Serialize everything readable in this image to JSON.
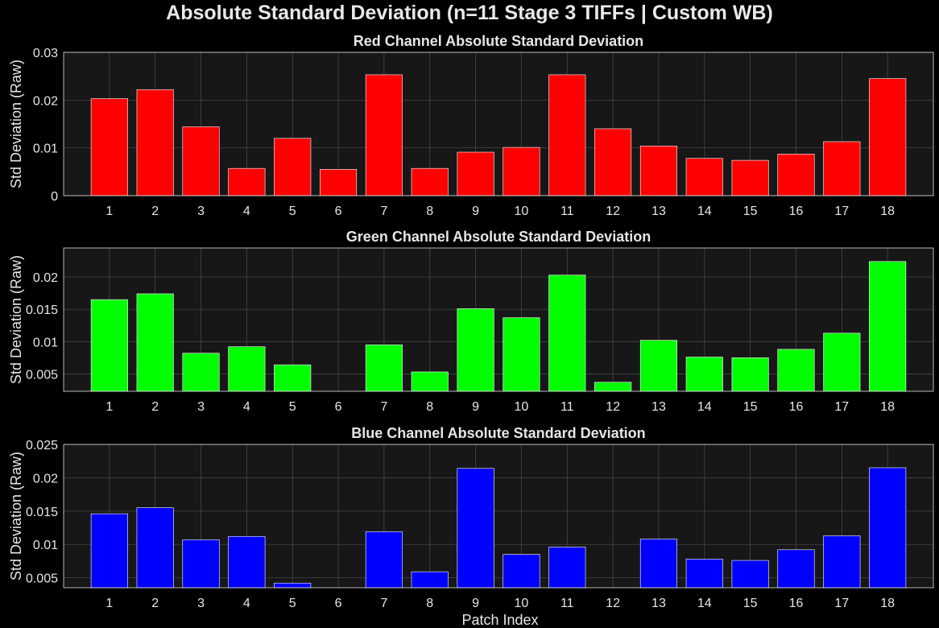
{
  "figure": {
    "title": "Absolute Standard Deviation (n=11 Stage 3 TIFFs | Custom WB)",
    "xlabel": "Patch Index",
    "background": "#000000",
    "axes_background": "#171717",
    "grid_color": "#4d4d4d",
    "text_color": "#e6e6e6"
  },
  "chart_data": [
    {
      "type": "bar",
      "title": "Red Channel Absolute Standard Deviation",
      "ylabel": "Std Deviation (Raw)",
      "xlabel": "",
      "color": "#ff0000",
      "categories": [
        "1",
        "2",
        "3",
        "4",
        "5",
        "6",
        "7",
        "8",
        "9",
        "10",
        "11",
        "12",
        "13",
        "14",
        "15",
        "16",
        "17",
        "18"
      ],
      "values": [
        0.0203,
        0.0222,
        0.0144,
        0.0057,
        0.012,
        0.0055,
        0.0253,
        0.0057,
        0.0091,
        0.0101,
        0.0253,
        0.014,
        0.0104,
        0.0078,
        0.0074,
        0.0087,
        0.0113,
        0.0245
      ],
      "ylim": [
        0,
        0.03
      ],
      "yticks": [
        0,
        0.01,
        0.02,
        0.03
      ],
      "ytick_labels": [
        "0",
        "0.01",
        "0.02",
        "0.03"
      ],
      "grid": true
    },
    {
      "type": "bar",
      "title": "Green Channel Absolute Standard Deviation",
      "ylabel": "Std Deviation (Raw)",
      "xlabel": "",
      "color": "#00ff00",
      "categories": [
        "1",
        "2",
        "3",
        "4",
        "5",
        "6",
        "7",
        "8",
        "9",
        "10",
        "11",
        "12",
        "13",
        "14",
        "15",
        "16",
        "17",
        "18"
      ],
      "values": [
        0.0165,
        0.0174,
        0.0082,
        0.0092,
        0.0064,
        0.0023,
        0.0095,
        0.0053,
        0.0151,
        0.0137,
        0.0203,
        0.0037,
        0.0102,
        0.0076,
        0.0075,
        0.0088,
        0.0113,
        0.0224
      ],
      "ylim": [
        0.0023,
        0.0245
      ],
      "yticks": [
        0.005,
        0.01,
        0.015,
        0.02
      ],
      "ytick_labels": [
        "0.005",
        "0.01",
        "0.015",
        "0.02"
      ],
      "grid": true
    },
    {
      "type": "bar",
      "title": "Blue Channel Absolute Standard Deviation",
      "ylabel": "Std Deviation (Raw)",
      "xlabel": "Patch Index",
      "color": "#0000ff",
      "categories": [
        "1",
        "2",
        "3",
        "4",
        "5",
        "6",
        "7",
        "8",
        "9",
        "10",
        "11",
        "12",
        "13",
        "14",
        "15",
        "16",
        "17",
        "18"
      ],
      "values": [
        0.0146,
        0.0155,
        0.0107,
        0.0112,
        0.0042,
        0.0035,
        0.0119,
        0.0059,
        0.0214,
        0.0085,
        0.0096,
        0.0035,
        0.0108,
        0.0078,
        0.0076,
        0.0092,
        0.0113,
        0.0215
      ],
      "ylim": [
        0.0035,
        0.025
      ],
      "yticks": [
        0.005,
        0.01,
        0.015,
        0.02,
        0.025
      ],
      "ytick_labels": [
        "0.005",
        "0.01",
        "0.015",
        "0.02",
        "0.025"
      ],
      "grid": true
    }
  ]
}
